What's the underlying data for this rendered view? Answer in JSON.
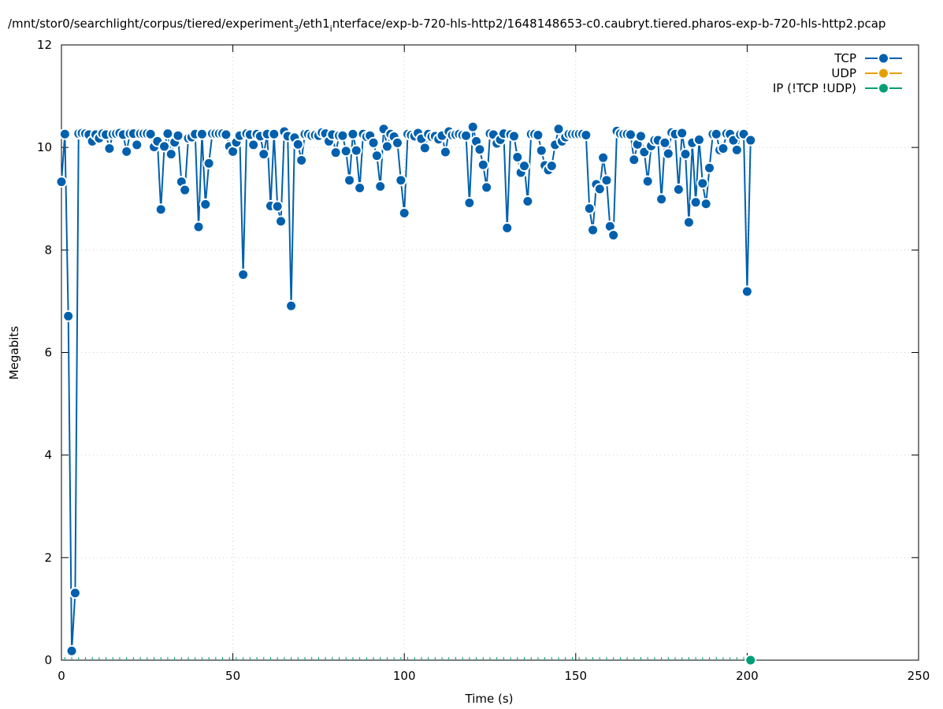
{
  "chart_data": {
    "type": "line",
    "title": "/mnt/stor0/searchlight/corpus/tiered/experiment",
    "title_sub": "3",
    "title_rest": "/eth1",
    "title_sub2": "i",
    "title_end": "nterface/exp-b-720-hls-http2/1648148653-c0.caubryt.tiered.pharos-exp-b-720-hls-http2.pcap",
    "xlabel": "Time (s)",
    "ylabel": "Megabits",
    "xlim": [
      0,
      250
    ],
    "ylim": [
      0,
      12
    ],
    "xticks": [
      0,
      50,
      100,
      150,
      200,
      250
    ],
    "yticks": [
      0,
      2,
      4,
      6,
      8,
      10,
      12
    ],
    "grid": true,
    "legend_position": "top-right",
    "series": [
      {
        "name": "TCP",
        "color": "#0060ad",
        "x": [
          0,
          1,
          2,
          3,
          4,
          5,
          6,
          7,
          8,
          9,
          10,
          11,
          12,
          13,
          14,
          15,
          16,
          17,
          18,
          19,
          20,
          21,
          22,
          23,
          24,
          25,
          26,
          27,
          28,
          29,
          30,
          31,
          32,
          33,
          34,
          35,
          36,
          37,
          38,
          39,
          40,
          41,
          42,
          43,
          44,
          45,
          46,
          47,
          48,
          49,
          50,
          51,
          52,
          53,
          54,
          55,
          56,
          57,
          58,
          59,
          60,
          61,
          62,
          63,
          64,
          65,
          66,
          67,
          68,
          69,
          70,
          71,
          72,
          73,
          74,
          75,
          76,
          77,
          78,
          79,
          80,
          81,
          82,
          83,
          84,
          85,
          86,
          87,
          88,
          89,
          90,
          91,
          92,
          93,
          94,
          95,
          96,
          97,
          98,
          99,
          100,
          101,
          102,
          103,
          104,
          105,
          106,
          107,
          108,
          109,
          110,
          111,
          112,
          113,
          114,
          115,
          116,
          117,
          118,
          119,
          120,
          121,
          122,
          123,
          124,
          125,
          126,
          127,
          128,
          129,
          130,
          131,
          132,
          133,
          134,
          135,
          136,
          137,
          138,
          139,
          140,
          141,
          142,
          143,
          144,
          145,
          146,
          147,
          148,
          149,
          150,
          151,
          152,
          153,
          154,
          155,
          156,
          157,
          158,
          159,
          160,
          161,
          162,
          163,
          164,
          165,
          166,
          167,
          168,
          169,
          170,
          171,
          172,
          173,
          174,
          175,
          176,
          177,
          178,
          179,
          180,
          181,
          182,
          183,
          184,
          185,
          186,
          187,
          188,
          189,
          190,
          191,
          192,
          193,
          194,
          195,
          196,
          197,
          198,
          199,
          200,
          201
        ],
        "values": [
          9.33,
          10.26,
          6.71,
          0.18,
          1.31,
          10.27,
          10.28,
          10.27,
          10.25,
          10.12,
          10.25,
          10.18,
          10.27,
          10.25,
          9.98,
          10.26,
          10.27,
          10.28,
          10.25,
          9.92,
          10.27,
          10.27,
          10.05,
          10.27,
          10.27,
          10.27,
          10.26,
          10.01,
          10.12,
          8.79,
          10.02,
          10.27,
          9.87,
          10.1,
          10.23,
          9.33,
          9.17,
          10.18,
          10.2,
          10.26,
          8.45,
          10.26,
          8.89,
          9.69,
          10.27,
          10.27,
          10.27,
          10.27,
          10.25,
          10.02,
          9.92,
          10.1,
          10.23,
          7.52,
          10.27,
          10.25,
          10.05,
          10.26,
          10.22,
          9.87,
          10.26,
          8.86,
          10.26,
          8.85,
          8.56,
          10.31,
          10.22,
          6.91,
          10.19,
          10.06,
          9.75,
          10.26,
          10.26,
          10.23,
          10.24,
          10.23,
          10.29,
          10.27,
          10.12,
          10.25,
          9.9,
          10.23,
          10.23,
          9.93,
          9.36,
          10.26,
          9.94,
          9.21,
          10.26,
          10.21,
          10.23,
          10.09,
          9.84,
          9.24,
          10.36,
          10.02,
          10.26,
          10.21,
          10.09,
          9.36,
          8.72,
          10.26,
          10.24,
          10.22,
          10.28,
          10.17,
          9.99,
          10.26,
          10.21,
          10.22,
          10.16,
          10.23,
          9.91,
          10.31,
          10.24,
          10.25,
          10.26,
          10.24,
          10.23,
          8.92,
          10.4,
          10.12,
          9.96,
          9.66,
          9.22,
          10.27,
          10.25,
          10.08,
          10.15,
          10.27,
          8.43,
          10.25,
          10.22,
          9.81,
          9.51,
          9.64,
          8.95,
          10.26,
          10.26,
          10.24,
          9.94,
          9.65,
          9.56,
          9.64,
          10.05,
          10.36,
          10.12,
          10.2,
          10.26,
          10.26,
          10.26,
          10.26,
          10.26,
          10.24,
          8.81,
          8.39,
          9.28,
          9.19,
          9.8,
          9.36,
          8.46,
          8.29,
          10.32,
          10.27,
          10.26,
          10.26,
          10.25,
          9.76,
          10.06,
          10.22,
          9.91,
          9.34,
          10.03,
          10.14,
          10.14,
          8.99,
          10.09,
          9.88,
          10.29,
          10.26,
          9.18,
          10.28,
          9.87,
          8.54,
          10.09,
          8.93,
          10.15,
          9.3,
          8.9,
          9.6,
          10.26,
          10.26,
          9.95,
          9.98,
          10.27,
          10.26,
          10.14,
          9.95,
          10.25,
          10.26,
          7.19,
          10.14
        ]
      },
      {
        "name": "UDP",
        "color": "#e69f00",
        "x": [],
        "values": []
      },
      {
        "name": "IP (!TCP  !UDP)",
        "color": "#009e73",
        "x": [
          201
        ],
        "values": [
          0
        ]
      }
    ]
  }
}
